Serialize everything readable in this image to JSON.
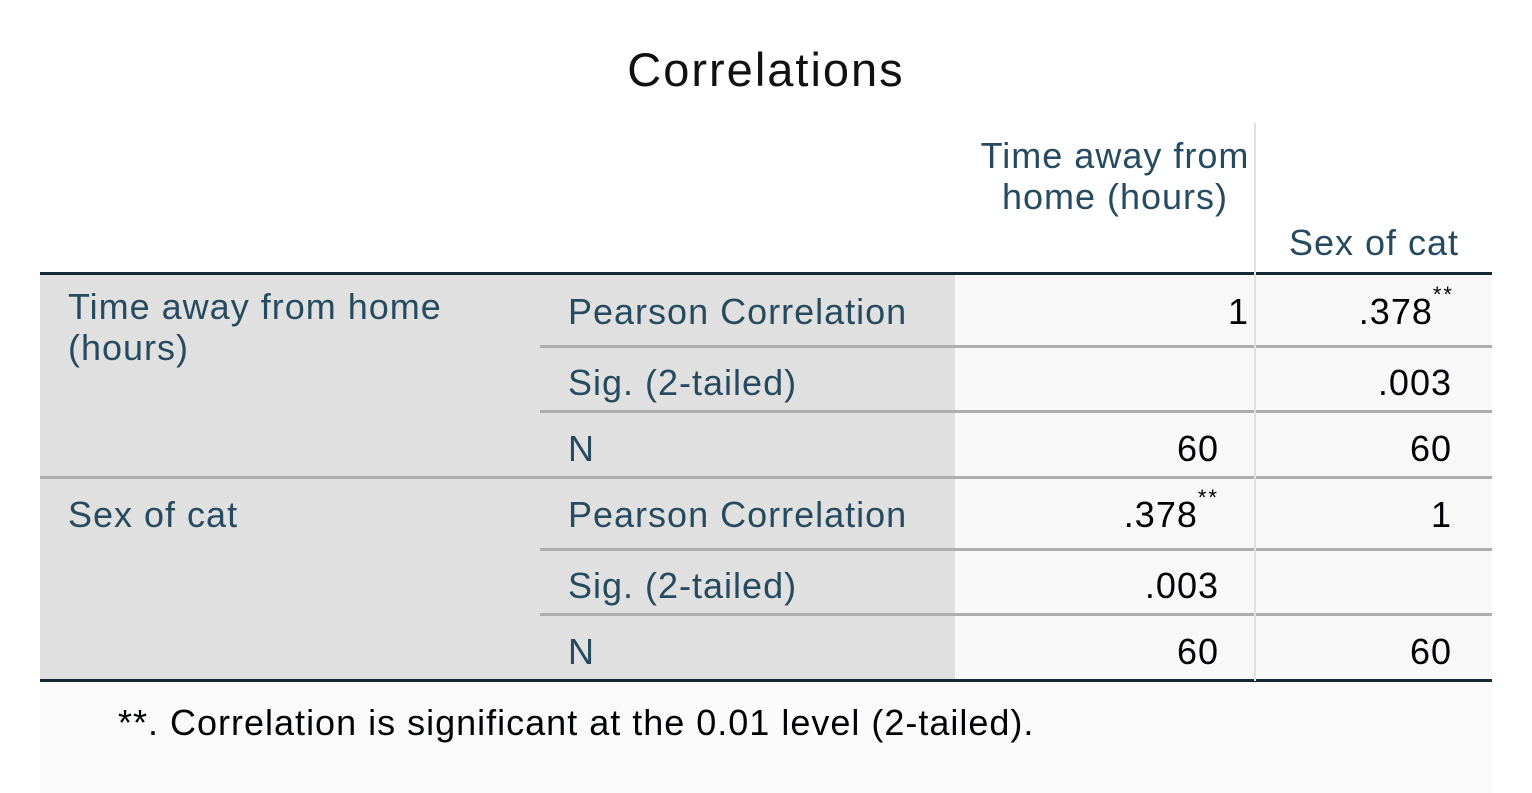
{
  "title": "Correlations",
  "columns": [
    "Time away from home (hours)",
    "Sex of cat"
  ],
  "rows": [
    {
      "label": "Time away from home (hours)",
      "stats": [
        {
          "name": "Pearson Correlation",
          "values": [
            "1",
            ".378"
          ],
          "flags": [
            "",
            "**"
          ]
        },
        {
          "name": "Sig. (2-tailed)",
          "values": [
            "",
            ".003"
          ],
          "flags": [
            "",
            ""
          ]
        },
        {
          "name": "N",
          "values": [
            "60",
            "60"
          ],
          "flags": [
            "",
            ""
          ]
        }
      ]
    },
    {
      "label": "Sex of cat",
      "stats": [
        {
          "name": "Pearson Correlation",
          "values": [
            ".378",
            "1"
          ],
          "flags": [
            "**",
            ""
          ]
        },
        {
          "name": "Sig. (2-tailed)",
          "values": [
            ".003",
            ""
          ],
          "flags": [
            "",
            ""
          ]
        },
        {
          "name": "N",
          "values": [
            "60",
            "60"
          ],
          "flags": [
            "",
            ""
          ]
        }
      ]
    }
  ],
  "footnote": "**. Correlation is significant at the 0.01 level (2-tailed).",
  "colors": {
    "header_text": "#264a60",
    "row_header_bg": "#e0e0e0",
    "data_bg": "#f8f8f9",
    "rule": "#152935"
  }
}
